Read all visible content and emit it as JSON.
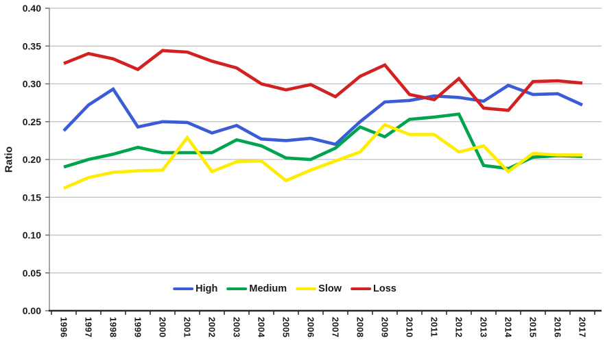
{
  "chart_data": {
    "type": "line",
    "title": "",
    "xlabel": "",
    "ylabel": "Ratio",
    "ylim": [
      0,
      0.4
    ],
    "ytick_step": 0.05,
    "ytick_labels": [
      "0.00",
      "0.05",
      "0.10",
      "0.15",
      "0.20",
      "0.25",
      "0.30",
      "0.35",
      "0.40"
    ],
    "grid": "horizontal",
    "legend_position": "bottom-center-inside",
    "x_labels": [
      "1996",
      "1997",
      "1998",
      "1999",
      "2000",
      "2001",
      "2002",
      "2003",
      "2004",
      "2005",
      "2006",
      "2007",
      "2008",
      "2009",
      "2010",
      "2011",
      "2012",
      "2013",
      "2014",
      "2015",
      "2016",
      "2017"
    ],
    "series": [
      {
        "name": "High",
        "color": "#3a5cd6",
        "values": [
          0.238,
          0.272,
          0.293,
          0.243,
          0.25,
          0.249,
          0.235,
          0.245,
          0.227,
          0.225,
          0.228,
          0.22,
          0.25,
          0.276,
          0.278,
          0.284,
          0.282,
          0.277,
          0.298,
          0.286,
          0.287,
          0.272
        ]
      },
      {
        "name": "Medium",
        "color": "#00a44f",
        "values": [
          0.19,
          0.2,
          0.207,
          0.216,
          0.209,
          0.209,
          0.209,
          0.226,
          0.218,
          0.202,
          0.2,
          0.215,
          0.243,
          0.23,
          0.253,
          0.256,
          0.26,
          0.192,
          0.188,
          0.203,
          0.205,
          0.204
        ]
      },
      {
        "name": "Slow",
        "color": "#ffec00",
        "values": [
          0.162,
          0.176,
          0.183,
          0.185,
          0.186,
          0.229,
          0.184,
          0.197,
          0.198,
          0.172,
          0.186,
          0.198,
          0.21,
          0.246,
          0.233,
          0.233,
          0.21,
          0.218,
          0.184,
          0.208,
          0.206,
          0.206
        ]
      },
      {
        "name": "Loss",
        "color": "#d32020",
        "values": [
          0.327,
          0.34,
          0.333,
          0.319,
          0.344,
          0.342,
          0.33,
          0.321,
          0.3,
          0.292,
          0.299,
          0.283,
          0.31,
          0.325,
          0.286,
          0.279,
          0.307,
          0.268,
          0.265,
          0.303,
          0.304,
          0.301
        ]
      }
    ]
  }
}
